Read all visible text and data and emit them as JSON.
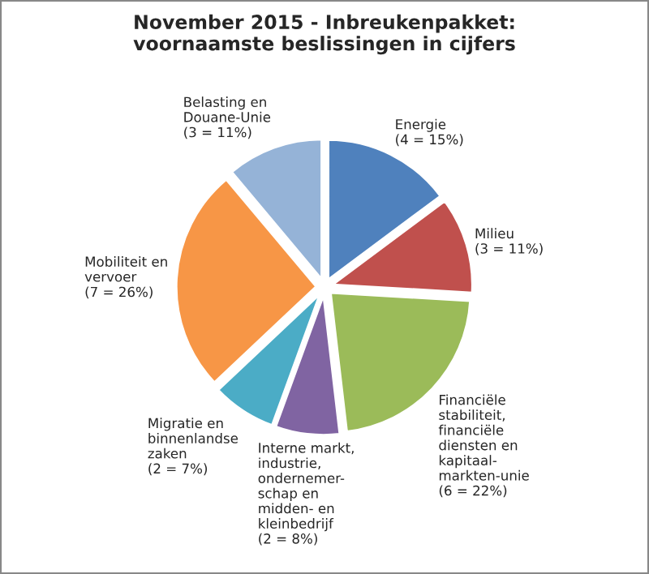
{
  "chart_data": {
    "type": "pie",
    "title": "November 2015 - Inbreukenpakket:\nvoornaamste beslissingen in cijfers",
    "categories": [
      "Energie",
      "Milieu",
      "Financiële\nstabiliteit,\nfinanciële\ndiensten en\nkapitaal-\nmarkten-unie",
      "Interne markt,\nindustrie,\nondernemer-\nschap en\nmidden- en\nkleinbedrijf",
      "Migratie en\nbinnenlandse\nzaken",
      "Mobiliteit en\nvervoer",
      "Belasting en\nDouane-Unie"
    ],
    "values": [
      4,
      3,
      6,
      2,
      2,
      7,
      3
    ],
    "value_labels": [
      "(4 = 15%)",
      "(3 = 11%)",
      "(6 = 22%)",
      "(2 = 8%)",
      "(2 = 7%)",
      "(7 = 26%)",
      "(3 = 11%)"
    ],
    "colors": [
      "#4f81bd",
      "#c0504d",
      "#9bbb59",
      "#8064a2",
      "#4bacc6",
      "#f79646",
      "#95b3d7"
    ]
  }
}
